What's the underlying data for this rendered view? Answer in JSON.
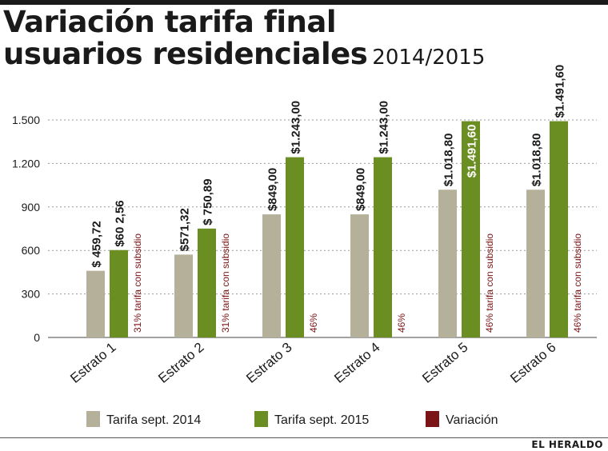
{
  "title_line1": "Variación tarifa final",
  "title_line2": "usuarios residenciales",
  "subtitle": "2014/2015",
  "source": "EL HERALDO",
  "chart_data": {
    "type": "bar",
    "categories": [
      "Estrato 1",
      "Estrato 2",
      "Estrato 3",
      "Estrato 4",
      "Estrato 5",
      "Estrato 6"
    ],
    "ylim": [
      0,
      1500
    ],
    "yticks": [
      0,
      300,
      600,
      900,
      1200,
      1500
    ],
    "ytick_labels": [
      "0",
      "300",
      "600",
      "900",
      "1.200",
      "1.500"
    ],
    "grid": true,
    "legend_position": "bottom",
    "series": [
      {
        "name": "Tarifa sept. 2014",
        "color": "#b5b09a",
        "values": [
          459.72,
          571.32,
          849.0,
          849.0,
          1018.8,
          1018.8
        ],
        "labels": [
          "$ 459,72",
          "$571,32",
          "$849,00",
          "$849,00",
          "$1.018,80",
          "$1.018,80"
        ]
      },
      {
        "name": "Tarifa sept. 2015",
        "color": "#6b8e23",
        "values": [
          602.56,
          750.89,
          1243.0,
          1243.0,
          1491.6,
          1491.6
        ],
        "labels": [
          "$60 2,56",
          "$ 750,89",
          "$1.243,00",
          "$1.243,00",
          "$1.491,60",
          "$1.491,60"
        ]
      },
      {
        "name": "Variación",
        "color": "#7a1416",
        "labels": [
          "31% tarifa con subsidio",
          "31% tarifa con subsidio",
          "46%",
          "46%",
          "46% tarifa con subsidio",
          "46% tarifa con subsidio"
        ]
      }
    ]
  }
}
